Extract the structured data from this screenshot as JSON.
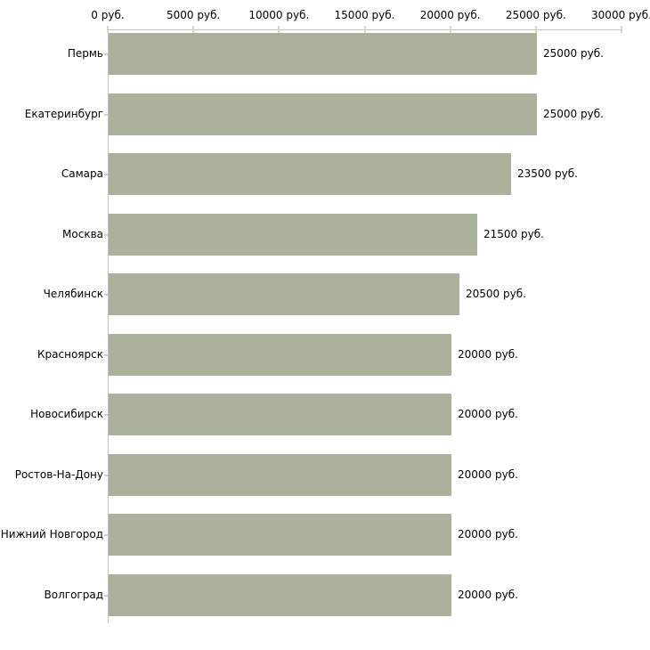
{
  "chart_data": {
    "type": "bar",
    "orientation": "horizontal",
    "title": "",
    "xlabel": "",
    "ylabel": "",
    "unit_suffix": " руб.",
    "categories": [
      "Пермь",
      "Екатеринбург",
      "Самара",
      "Москва",
      "Челябинск",
      "Красноярск",
      "Новосибирск",
      "Ростов-На-Дону",
      "Нижний Новгород",
      "Волгоград"
    ],
    "values": [
      25000,
      25000,
      23500,
      21500,
      20500,
      20000,
      20000,
      20000,
      20000,
      20000
    ],
    "value_labels": [
      "25000 руб.",
      "25000 руб.",
      "23500 руб.",
      "21500 руб.",
      "20500 руб.",
      "20000 руб.",
      "20000 руб.",
      "20000 руб.",
      "20000 руб.",
      "20000 руб."
    ],
    "x_axis": {
      "position": "top",
      "range": [
        0,
        30000
      ],
      "ticks": [
        0,
        5000,
        10000,
        15000,
        20000,
        25000,
        30000
      ],
      "tick_labels": [
        "0 руб.",
        "5000 руб.",
        "10000 руб.",
        "15000 руб.",
        "20000 руб.",
        "25000 руб.",
        "30000 руб."
      ]
    },
    "grid": false,
    "legend": false,
    "colors": {
      "bar": "#abb29c",
      "axis": "#c2c2c2",
      "axis_tick": "#d5d7c1",
      "category_tick": "#cfd2ba",
      "text": "#000000",
      "background": "#ffffff"
    }
  }
}
